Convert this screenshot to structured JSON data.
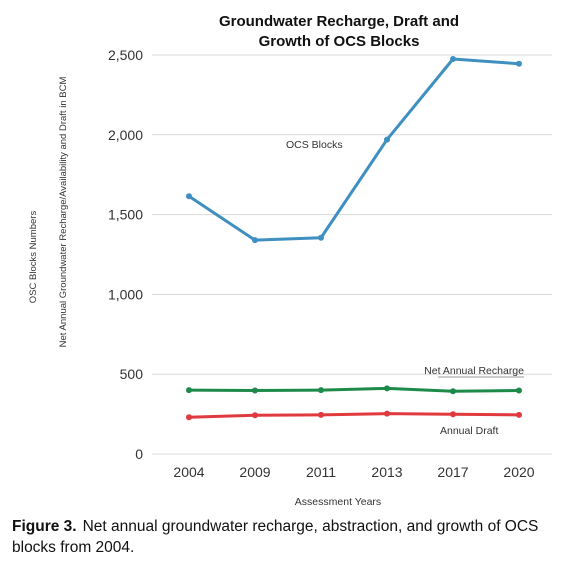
{
  "caption": {
    "label": "Figure 3.",
    "text": "Net annual groundwater recharge, abstraction, and growth of OCS blocks from 2004."
  },
  "chart_data": {
    "type": "line",
    "title_lines": [
      "Groundwater Recharge, Draft and",
      "Growth of OCS Blocks"
    ],
    "ylabel_lines": [
      "OSC Blocks Numbers",
      "Net Annual Groundwater Recharge/Availability and Draft in BCM"
    ],
    "xlabel": "Assessment Years",
    "categories": [
      "2004",
      "2009",
      "2011",
      "2013",
      "2017",
      "2020"
    ],
    "ylim": [
      0,
      2500
    ],
    "yticks": [
      0,
      500,
      1000,
      1500,
      2000,
      2500
    ],
    "ytick_labels": [
      "0",
      "500",
      "1,000",
      "1,500",
      "2,000",
      "2,500"
    ],
    "grid": true,
    "series": [
      {
        "name": "OCS Blocks",
        "color": "#3f8fc0",
        "values": [
          1615,
          1340,
          1355,
          1970,
          2475,
          2445
        ]
      },
      {
        "name": "Net Annual Recharge",
        "color": "#1e8a4a",
        "values": [
          400,
          398,
          400,
          411,
          393,
          398
        ]
      },
      {
        "name": "Annual Draft",
        "color": "#e03a3e",
        "values": [
          230,
          243,
          245,
          253,
          249,
          245
        ]
      }
    ]
  }
}
